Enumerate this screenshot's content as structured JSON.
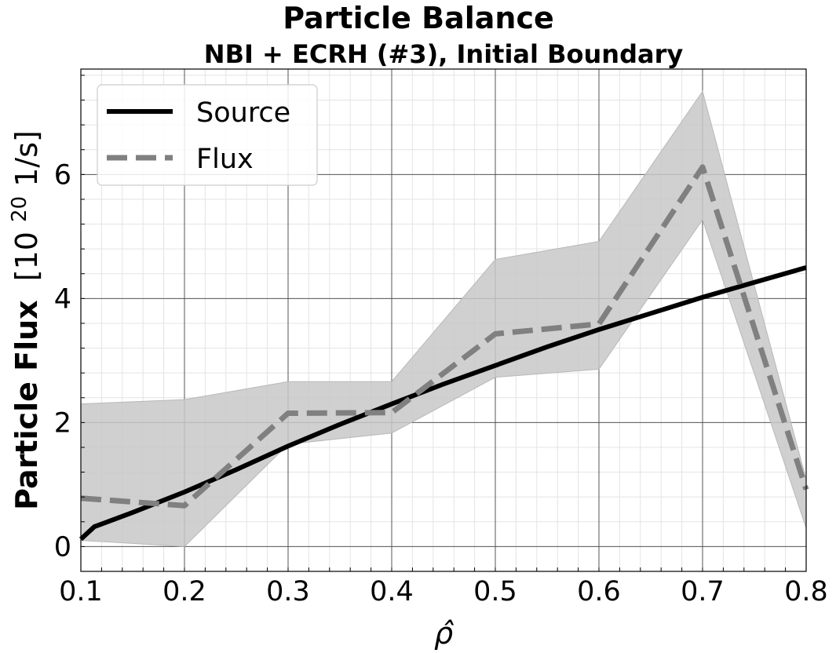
{
  "chart_data": {
    "type": "line",
    "title": "Particle Balance",
    "subtitle": "NBI + ECRH (#3), Initial Boundary",
    "xlabel": "ρ̂",
    "ylabel_bold": "Particle Flux",
    "ylabel_unit_prefix": "[10",
    "ylabel_unit_exp": "20",
    "ylabel_unit_suffix": " 1/s]",
    "xlim": [
      0.1,
      0.8
    ],
    "ylim": [
      -0.4,
      7.7
    ],
    "xticks": [
      0.1,
      0.2,
      0.3,
      0.4,
      0.5,
      0.6,
      0.7,
      0.8
    ],
    "xtick_labels": [
      "0.1",
      "0.2",
      "0.3",
      "0.4",
      "0.5",
      "0.6",
      "0.7",
      "0.8"
    ],
    "yticks": [
      0,
      2,
      4,
      6
    ],
    "ytick_labels": [
      "0",
      "2",
      "4",
      "6"
    ],
    "grid": true,
    "minor_grid": true,
    "legend_position": "top-left",
    "series": [
      {
        "name": "Source",
        "style": "solid",
        "color": "#000000",
        "x": [
          0.1,
          0.113,
          0.15,
          0.2,
          0.25,
          0.3,
          0.35,
          0.4,
          0.45,
          0.5,
          0.55,
          0.6,
          0.65,
          0.7,
          0.75,
          0.8
        ],
        "y": [
          0.12,
          0.32,
          0.55,
          0.88,
          1.24,
          1.62,
          1.97,
          2.3,
          2.62,
          2.92,
          3.22,
          3.5,
          3.76,
          4.02,
          4.26,
          4.5
        ]
      },
      {
        "name": "Flux",
        "style": "dashed",
        "color": "#808080",
        "x": [
          0.1,
          0.2,
          0.3,
          0.4,
          0.5,
          0.6,
          0.7,
          0.8
        ],
        "y": [
          0.78,
          0.66,
          2.15,
          2.16,
          3.43,
          3.59,
          6.12,
          0.92
        ],
        "band_lower": [
          0.1,
          0.0,
          1.65,
          1.83,
          2.73,
          2.86,
          5.27,
          0.3
        ],
        "band_upper": [
          2.3,
          2.37,
          2.66,
          2.66,
          4.63,
          4.92,
          7.34,
          1.08
        ],
        "band_color": "#c8c8c8"
      }
    ]
  }
}
